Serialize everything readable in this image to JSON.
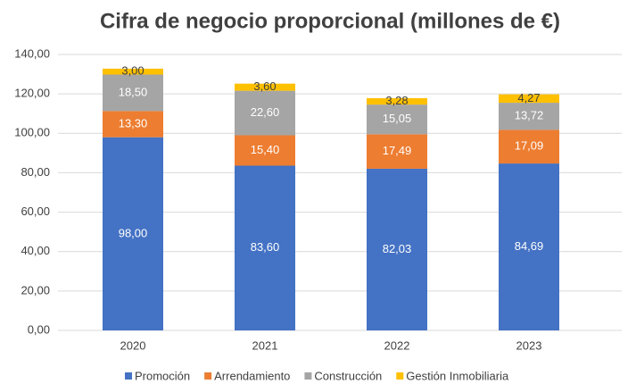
{
  "chart_data": {
    "type": "stacked_bar",
    "title": "Cifra de negocio proporcional (millones de €)",
    "categories": [
      "2020",
      "2021",
      "2022",
      "2023"
    ],
    "series": [
      {
        "name": "Promoción",
        "color": "#4472c4",
        "values": [
          98.0,
          83.6,
          82.03,
          84.69
        ],
        "value_labels": [
          "98,00",
          "83,60",
          "82,03",
          "84,69"
        ]
      },
      {
        "name": "Arrendamiento",
        "color": "#ed7d31",
        "values": [
          13.3,
          15.4,
          17.49,
          17.09
        ],
        "value_labels": [
          "13,30",
          "15,40",
          "17,49",
          "17,09"
        ]
      },
      {
        "name": "Construcción",
        "color": "#a5a5a5",
        "values": [
          18.5,
          22.6,
          15.05,
          13.72
        ],
        "value_labels": [
          "18,50",
          "22,60",
          "15,05",
          "13,72"
        ]
      },
      {
        "name": "Gestión Inmobiliaria",
        "color": "#ffc000",
        "values": [
          3.0,
          3.6,
          3.28,
          4.27
        ],
        "value_labels": [
          "3,00",
          "3,60",
          "3,28",
          "4,27"
        ]
      }
    ],
    "ylim": [
      0,
      140
    ],
    "yticks": [
      {
        "value": 0,
        "label": "0,00"
      },
      {
        "value": 20,
        "label": "20,00"
      },
      {
        "value": 40,
        "label": "40,00"
      },
      {
        "value": 60,
        "label": "60,00"
      },
      {
        "value": 80,
        "label": "80,00"
      },
      {
        "value": 100,
        "label": "100,00"
      },
      {
        "value": 120,
        "label": "120,00"
      },
      {
        "value": 140,
        "label": "140,00"
      }
    ],
    "grid": true,
    "legend": "bottom"
  }
}
